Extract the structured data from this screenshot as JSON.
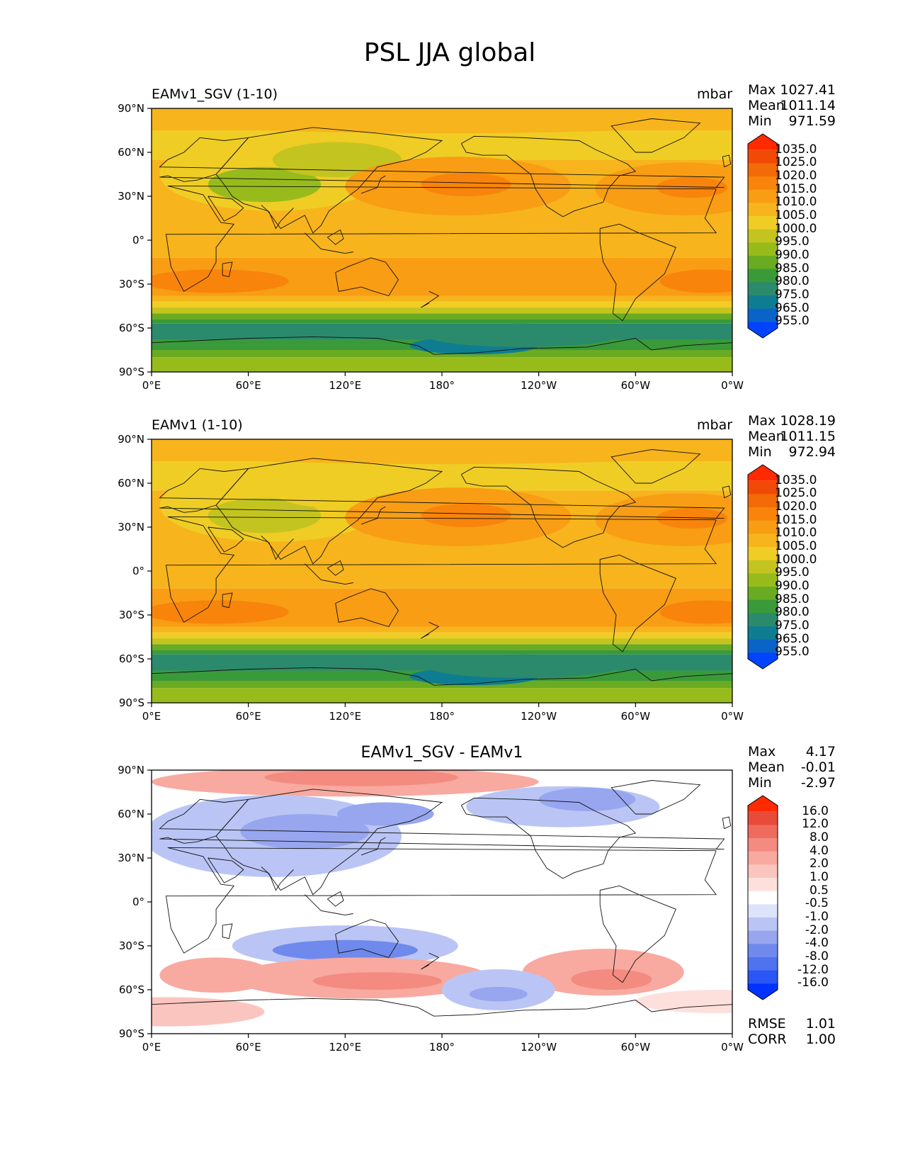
{
  "figure_title": "PSL JJA global",
  "units": "mbar",
  "lat_ticks": [
    "90°N",
    "60°N",
    "30°N",
    "0°",
    "30°S",
    "60°S",
    "90°S"
  ],
  "lon_ticks": [
    "0°E",
    "60°E",
    "120°E",
    "180°",
    "120°W",
    "60°W",
    "0°W"
  ],
  "panels": [
    {
      "title": "EAMv1_SGV (1-10)",
      "units": "mbar",
      "stats": {
        "max_label": "Max",
        "max": "1027.41",
        "mean_label": "Mean",
        "mean": "1011.14",
        "min_label": "Min",
        "min": "971.59"
      },
      "colorbar": [
        "1035.0",
        "1025.0",
        "1020.0",
        "1015.0",
        "1010.0",
        "1005.0",
        "1000.0",
        "995.0",
        "990.0",
        "985.0",
        "980.0",
        "975.0",
        "965.0",
        "955.0"
      ]
    },
    {
      "title": "EAMv1 (1-10)",
      "units": "mbar",
      "stats": {
        "max_label": "Max",
        "max": "1028.19",
        "mean_label": "Mean",
        "mean": "1011.15",
        "min_label": "Min",
        "min": "972.94"
      },
      "colorbar": [
        "1035.0",
        "1025.0",
        "1020.0",
        "1015.0",
        "1010.0",
        "1005.0",
        "1000.0",
        "995.0",
        "990.0",
        "985.0",
        "980.0",
        "975.0",
        "965.0",
        "955.0"
      ]
    },
    {
      "title": "EAMv1_SGV - EAMv1",
      "stats": {
        "max_label": "Max",
        "max": "4.17",
        "mean_label": "Mean",
        "mean": "-0.01",
        "min_label": "Min",
        "min": "-2.97"
      },
      "colorbar": [
        "16.0",
        "12.0",
        "8.0",
        "4.0",
        "2.0",
        "1.0",
        "0.5",
        "-0.5",
        "-1.0",
        "-2.0",
        "-4.0",
        "-8.0",
        "-12.0",
        "-16.0"
      ],
      "metrics": {
        "rmse_label": "RMSE",
        "rmse": "1.01",
        "corr_label": "CORR",
        "corr": "1.00"
      }
    }
  ],
  "colors": {
    "abs_scale": [
      "#0044ff",
      "#0a64c8",
      "#0f7d91",
      "#2b8a6c",
      "#3a9a3a",
      "#6aab22",
      "#98bb1c",
      "#c4c420",
      "#f0cd24",
      "#f7b41c",
      "#f89d14",
      "#f8840c",
      "#f36a08",
      "#f14a06",
      "#ff2a00"
    ],
    "diff_scale": [
      "#0033ff",
      "#2a56f5",
      "#4f72ef",
      "#7089ec",
      "#97a6ef",
      "#bac5f5",
      "#dce3fb",
      "#ffffff",
      "#fde0dc",
      "#fbc5bf",
      "#f8a9a0",
      "#f48b80",
      "#ef6b5e",
      "#ea4a39",
      "#ff2a00"
    ]
  }
}
